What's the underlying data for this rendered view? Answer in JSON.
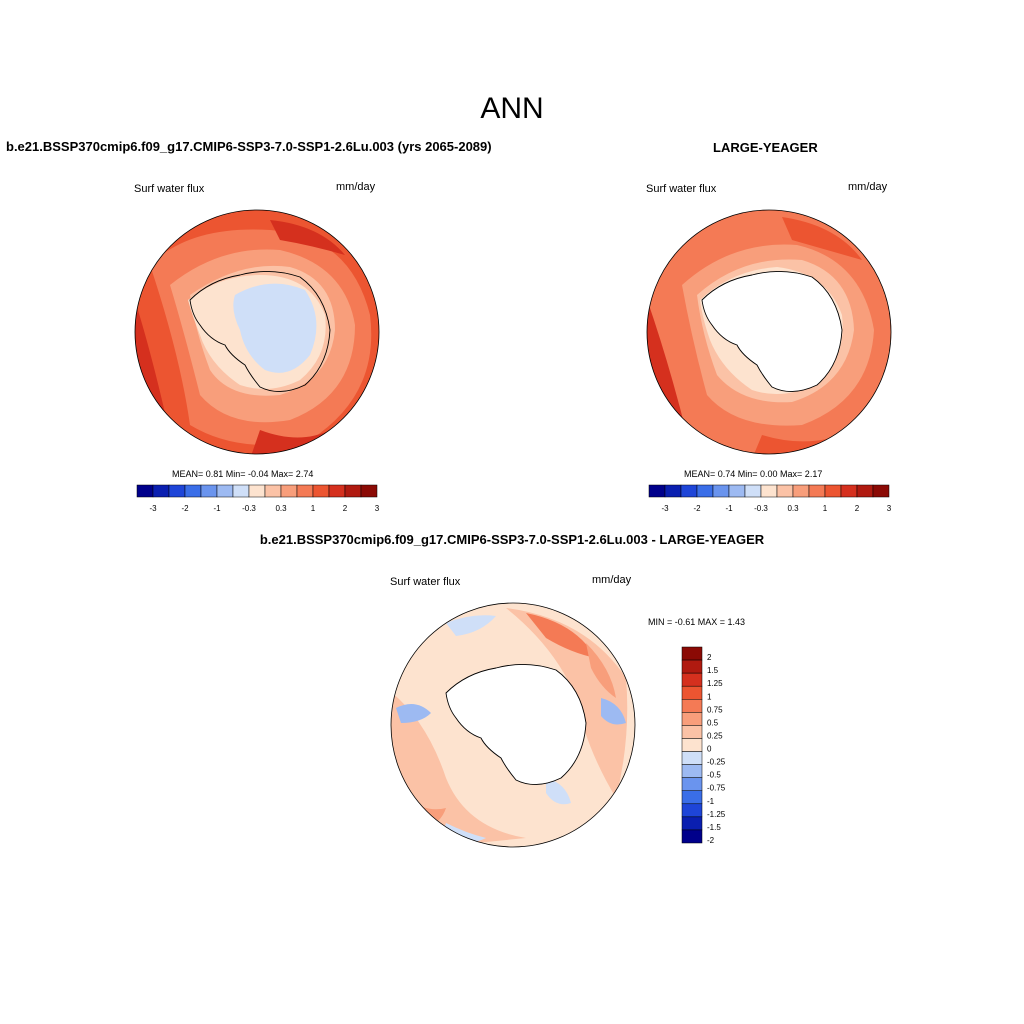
{
  "main_title": "ANN",
  "panels": [
    {
      "title": "b.e21.BSSP370cmip6.f09_g17.CMIP6-SSP3-7.0-SSP1-2.6Lu.003 (yrs 2065-2089)",
      "variable": "Surf water flux",
      "units": "mm/day",
      "stats": "MEAN=   0.81  Min=  -0.04  Max=   2.74"
    },
    {
      "title": "LARGE-YEAGER",
      "variable": "Surf water flux",
      "units": "mm/day",
      "stats": "MEAN=   0.74  Min=   0.00  Max=   2.17"
    },
    {
      "title": "b.e21.BSSP370cmip6.f09_g17.CMIP6-SSP3-7.0-SSP1-2.6Lu.003 - LARGE-YEAGER",
      "variable": "Surf water flux",
      "units": "mm/day",
      "stats": "MIN =  -0.61 MAX =   1.43"
    }
  ],
  "colorbar_horizontal": {
    "labels": [
      "-3",
      "-2",
      "-1",
      "-0.3",
      "0.3",
      "1",
      "2",
      "3"
    ],
    "colors": [
      "#00008b",
      "#0a1fb0",
      "#1e45d8",
      "#3a6ee8",
      "#6a94ee",
      "#9dbaf2",
      "#cfdff8",
      "#fde3cf",
      "#fbc2a6",
      "#f89e7b",
      "#f47a55",
      "#ec5531",
      "#d5301e",
      "#b01a10",
      "#8b0a05"
    ]
  },
  "colorbar_vertical": {
    "labels": [
      "2",
      "1.5",
      "1.25",
      "1",
      "0.75",
      "0.5",
      "0.25",
      "0",
      "-0.25",
      "-0.5",
      "-0.75",
      "-1",
      "-1.25",
      "-1.5",
      "-2"
    ],
    "colors": [
      "#8b0a05",
      "#b01a10",
      "#d5301e",
      "#ec5531",
      "#f47a55",
      "#f89e7b",
      "#fbc2a6",
      "#fde3cf",
      "#cfdff8",
      "#9dbaf2",
      "#6a94ee",
      "#3a6ee8",
      "#1e45d8",
      "#0a1fb0",
      "#00008b"
    ]
  }
}
